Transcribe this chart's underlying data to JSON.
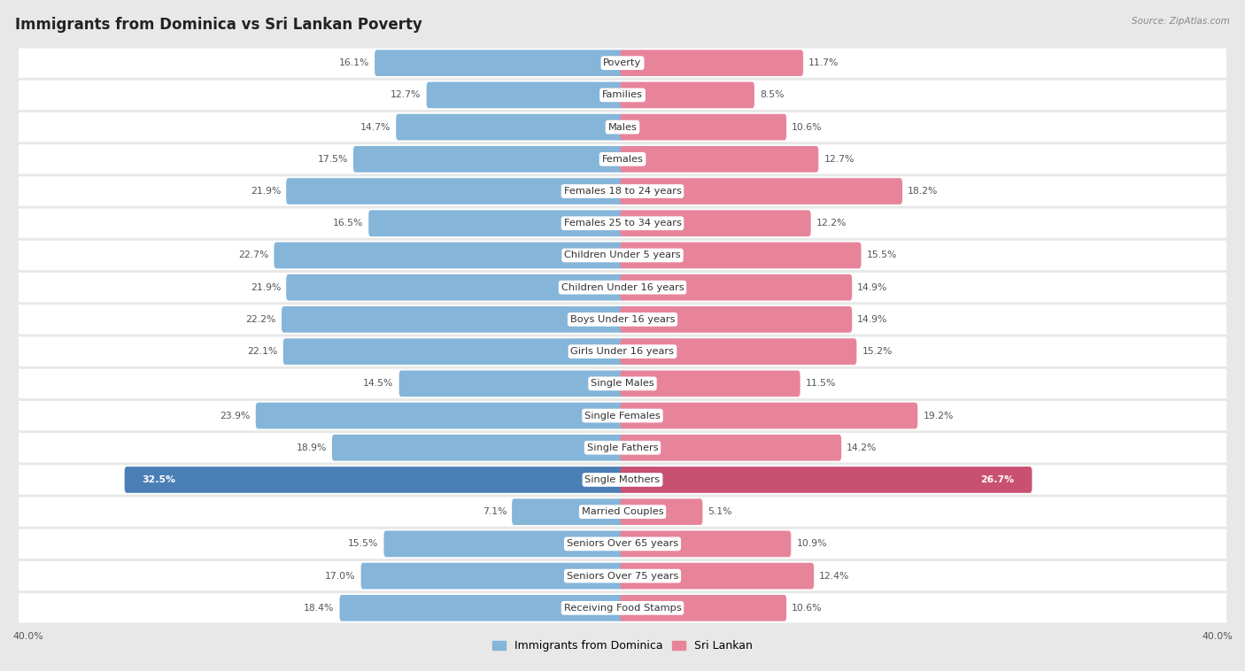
{
  "title": "Immigrants from Dominica vs Sri Lankan Poverty",
  "source": "Source: ZipAtlas.com",
  "categories": [
    "Poverty",
    "Families",
    "Males",
    "Females",
    "Females 18 to 24 years",
    "Females 25 to 34 years",
    "Children Under 5 years",
    "Children Under 16 years",
    "Boys Under 16 years",
    "Girls Under 16 years",
    "Single Males",
    "Single Females",
    "Single Fathers",
    "Single Mothers",
    "Married Couples",
    "Seniors Over 65 years",
    "Seniors Over 75 years",
    "Receiving Food Stamps"
  ],
  "left_values": [
    16.1,
    12.7,
    14.7,
    17.5,
    21.9,
    16.5,
    22.7,
    21.9,
    22.2,
    22.1,
    14.5,
    23.9,
    18.9,
    32.5,
    7.1,
    15.5,
    17.0,
    18.4
  ],
  "right_values": [
    11.7,
    8.5,
    10.6,
    12.7,
    18.2,
    12.2,
    15.5,
    14.9,
    14.9,
    15.2,
    11.5,
    19.2,
    14.2,
    26.7,
    5.1,
    10.9,
    12.4,
    10.6
  ],
  "left_color": "#85b5d9",
  "right_color": "#e8849a",
  "left_label": "Immigrants from Dominica",
  "right_label": "Sri Lankan",
  "axis_max": 40.0,
  "background_color": "#e8e8e8",
  "row_bg_color": "#ffffff",
  "title_fontsize": 12,
  "label_fontsize": 8.2,
  "value_fontsize": 7.8,
  "highlight_category": "Single Mothers",
  "highlight_left_color": "#4a7fb5",
  "highlight_right_color": "#c85070"
}
